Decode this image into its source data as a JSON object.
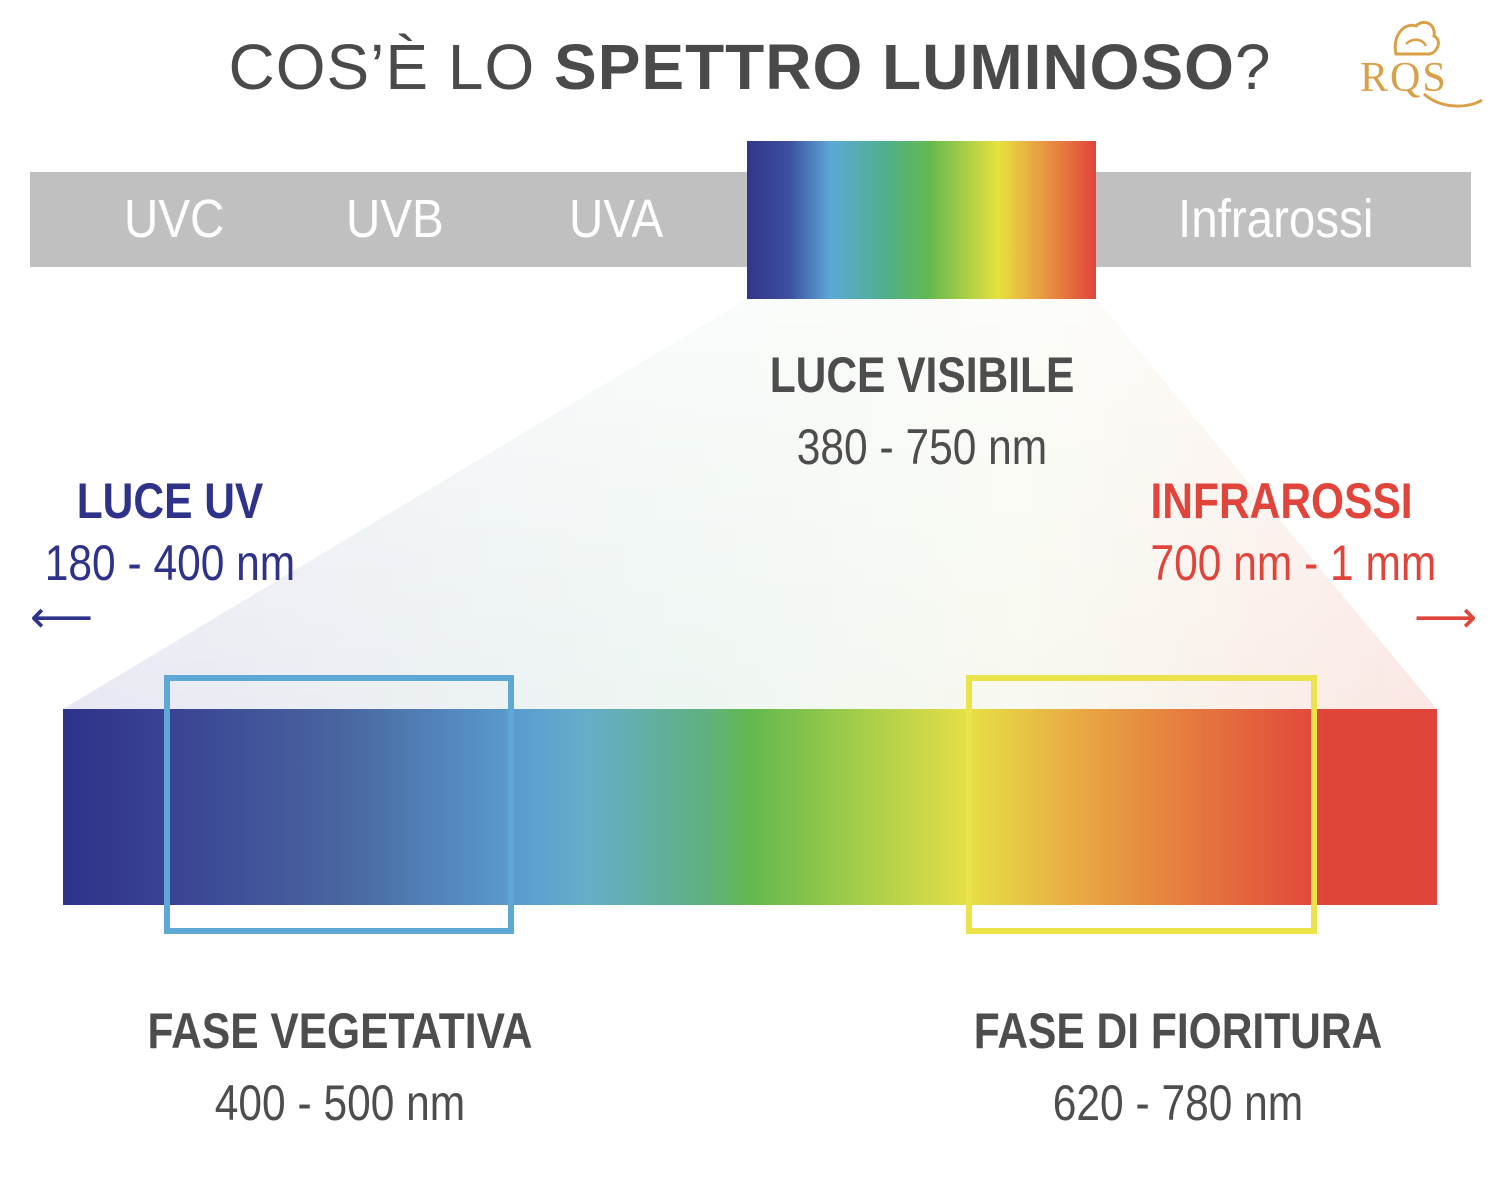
{
  "title": {
    "prefix": "COS’È LO ",
    "emphasis": "SPETTRO LUMINOSO",
    "suffix": "?"
  },
  "logo": {
    "text": "RQS"
  },
  "spectrum_bar": {
    "bands": [
      "UVC",
      "UVB",
      "UVA",
      "Infrarossi"
    ]
  },
  "visible_light": {
    "heading": "LUCE VISIBILE",
    "range": "380 - 750 nm"
  },
  "uv_light": {
    "heading": "LUCE UV",
    "range": "180 - 400 nm",
    "arrow": "⟵"
  },
  "infrared": {
    "heading": "INFRAROSSI",
    "range": "700 nm - 1 mm",
    "arrow": "⟶"
  },
  "phases": [
    {
      "heading": "FASE VEGETATIVA",
      "range": "400 - 500 nm"
    },
    {
      "heading": "FASE DI FIORITURA",
      "range": "620 - 780 nm"
    }
  ],
  "colors": {
    "uv": "#2e3389",
    "infrared": "#e0443a",
    "vegetative_frame": "#5ea8d6",
    "flowering_frame": "#ece34a",
    "gray_bar": "#c0c0c0",
    "text": "#4d4d4d",
    "logo": "#d9a04a"
  }
}
